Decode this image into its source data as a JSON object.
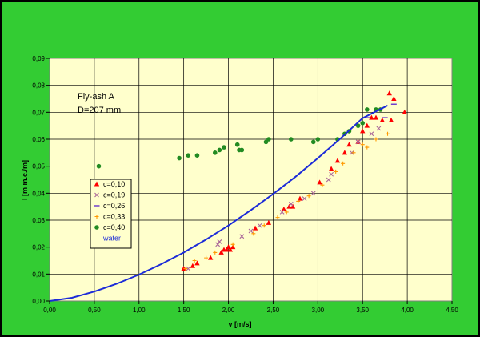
{
  "chart_data": {
    "type": "scatter",
    "annotation": [
      "Fly-ash A",
      "D=207 mm"
    ],
    "xlabel": "v [m/s]",
    "ylabel": "I [m m.c./m]",
    "xlim": [
      0,
      4.5
    ],
    "ylim": [
      0,
      0.09
    ],
    "xticks": [
      "0,00",
      "0,50",
      "1,00",
      "1,50",
      "2,00",
      "2,50",
      "3,00",
      "3,50",
      "4,00",
      "4,50"
    ],
    "yticks": [
      "0,00",
      "0,01",
      "0,02",
      "0,03",
      "0,04",
      "0,05",
      "0,06",
      "0,07",
      "0,08",
      "0,09"
    ],
    "grid": true,
    "legend_position": "left-middle",
    "colors": {
      "background": "#000000",
      "chart_area": "#33cc33",
      "plot_area": "#ffffcc",
      "c010": "#ff0000",
      "c019": "#aa6699",
      "c026": "#6633cc",
      "c033": "#ff9900",
      "c040": "#228b22",
      "water": "#1c2bd8"
    },
    "series": [
      {
        "name": "c=0,10",
        "marker": "triangle",
        "color": "#ff0000",
        "points": [
          [
            1.5,
            0.012
          ],
          [
            1.6,
            0.013
          ],
          [
            1.65,
            0.014
          ],
          [
            1.8,
            0.016
          ],
          [
            1.92,
            0.018
          ],
          [
            1.95,
            0.019
          ],
          [
            1.98,
            0.019
          ],
          [
            2.0,
            0.02
          ],
          [
            2.02,
            0.019
          ],
          [
            2.05,
            0.02
          ],
          [
            2.3,
            0.027
          ],
          [
            2.45,
            0.029
          ],
          [
            2.62,
            0.034
          ],
          [
            2.68,
            0.035
          ],
          [
            2.72,
            0.035
          ],
          [
            2.8,
            0.038
          ],
          [
            3.02,
            0.044
          ],
          [
            3.15,
            0.049
          ],
          [
            3.22,
            0.052
          ],
          [
            3.3,
            0.055
          ],
          [
            3.35,
            0.058
          ],
          [
            3.45,
            0.059
          ],
          [
            3.5,
            0.063
          ],
          [
            3.55,
            0.065
          ],
          [
            3.6,
            0.068
          ],
          [
            3.65,
            0.068
          ],
          [
            3.72,
            0.067
          ],
          [
            3.8,
            0.077
          ],
          [
            3.82,
            0.067
          ],
          [
            3.85,
            0.075
          ],
          [
            3.97,
            0.07
          ]
        ]
      },
      {
        "name": "c=0,19",
        "marker": "x",
        "color": "#aa6699",
        "points": [
          [
            1.55,
            0.012
          ],
          [
            1.88,
            0.021
          ],
          [
            1.9,
            0.022
          ],
          [
            2.15,
            0.024
          ],
          [
            2.25,
            0.026
          ],
          [
            2.35,
            0.028
          ],
          [
            2.6,
            0.033
          ],
          [
            2.7,
            0.036
          ],
          [
            2.85,
            0.038
          ],
          [
            2.95,
            0.04
          ],
          [
            3.12,
            0.045
          ],
          [
            3.15,
            0.047
          ],
          [
            3.38,
            0.055
          ],
          [
            3.45,
            0.059
          ],
          [
            3.6,
            0.062
          ],
          [
            3.68,
            0.064
          ]
        ]
      },
      {
        "name": "c=0,26",
        "marker": "dash",
        "color": "#6633cc",
        "points": [
          [
            3.85,
            0.073
          ],
          [
            3.55,
            0.068
          ],
          [
            3.75,
            0.068
          ]
        ]
      },
      {
        "name": "c=0,33",
        "marker": "plus",
        "color": "#ff9900",
        "points": [
          [
            1.52,
            0.012
          ],
          [
            1.62,
            0.015
          ],
          [
            1.75,
            0.016
          ],
          [
            1.85,
            0.018
          ],
          [
            2.05,
            0.021
          ],
          [
            2.28,
            0.025
          ],
          [
            2.4,
            0.028
          ],
          [
            2.55,
            0.031
          ],
          [
            2.65,
            0.033
          ],
          [
            2.78,
            0.037
          ],
          [
            2.9,
            0.039
          ],
          [
            3.05,
            0.043
          ],
          [
            3.2,
            0.048
          ],
          [
            3.28,
            0.051
          ],
          [
            3.4,
            0.055
          ],
          [
            3.5,
            0.058
          ],
          [
            3.55,
            0.057
          ],
          [
            3.65,
            0.06
          ],
          [
            3.78,
            0.062
          ]
        ]
      },
      {
        "name": "c=0,40",
        "marker": "circle",
        "color": "#228b22",
        "points": [
          [
            0.55,
            0.05
          ],
          [
            1.45,
            0.053
          ],
          [
            1.55,
            0.054
          ],
          [
            1.65,
            0.054
          ],
          [
            1.85,
            0.055
          ],
          [
            1.9,
            0.056
          ],
          [
            1.95,
            0.057
          ],
          [
            2.1,
            0.058
          ],
          [
            2.12,
            0.056
          ],
          [
            2.15,
            0.056
          ],
          [
            2.42,
            0.059
          ],
          [
            2.45,
            0.06
          ],
          [
            2.7,
            0.06
          ],
          [
            2.95,
            0.059
          ],
          [
            3.0,
            0.06
          ],
          [
            3.22,
            0.06
          ],
          [
            3.3,
            0.062
          ],
          [
            3.35,
            0.063
          ],
          [
            3.45,
            0.065
          ],
          [
            3.5,
            0.066
          ],
          [
            3.55,
            0.071
          ],
          [
            3.65,
            0.071
          ],
          [
            3.7,
            0.071
          ]
        ]
      },
      {
        "name": "water",
        "marker": "line",
        "color": "#1c2bd8",
        "points": [
          [
            0,
            0
          ],
          [
            0.25,
            0.0012
          ],
          [
            0.5,
            0.0035
          ],
          [
            0.75,
            0.0064
          ],
          [
            1.0,
            0.0098
          ],
          [
            1.25,
            0.0137
          ],
          [
            1.5,
            0.018
          ],
          [
            1.75,
            0.0228
          ],
          [
            2.0,
            0.028
          ],
          [
            2.25,
            0.0337
          ],
          [
            2.5,
            0.0397
          ],
          [
            2.75,
            0.0461
          ],
          [
            3.0,
            0.053
          ],
          [
            3.25,
            0.0602
          ],
          [
            3.5,
            0.0678
          ],
          [
            3.78,
            0.0725
          ]
        ]
      }
    ]
  }
}
